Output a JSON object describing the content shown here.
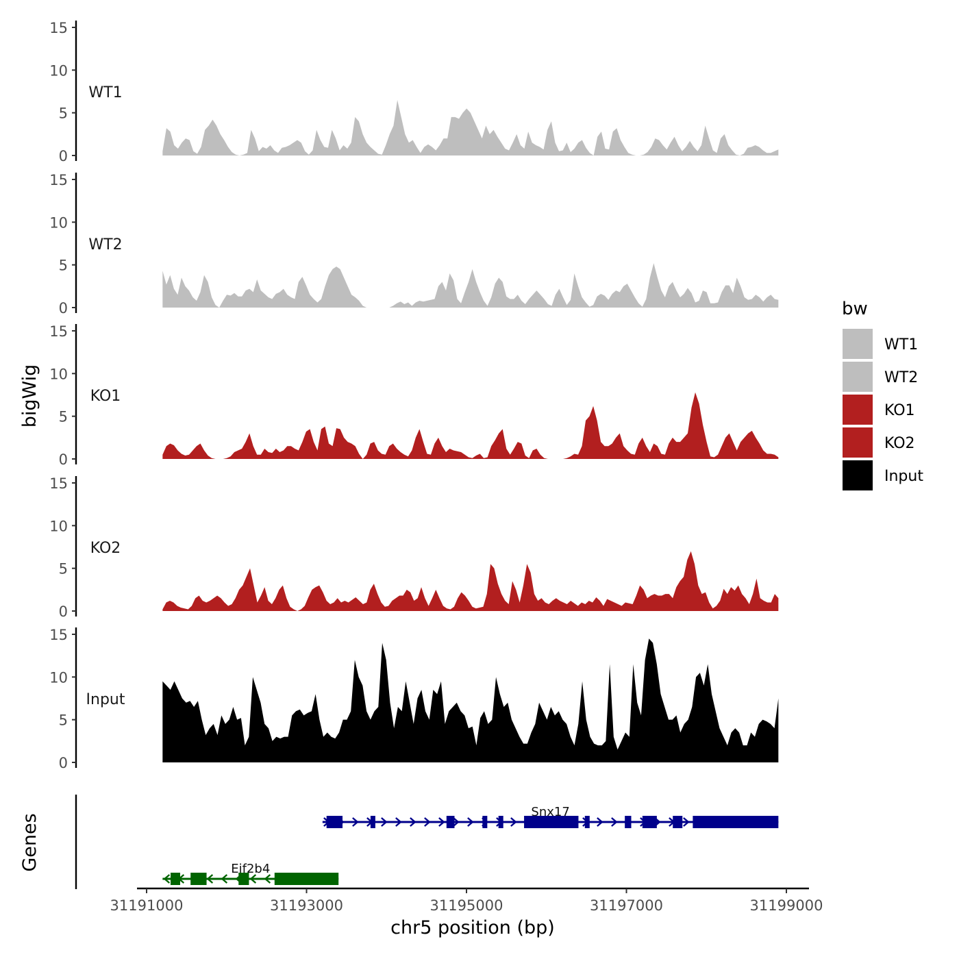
{
  "chart_data": {
    "type": "area",
    "region": {
      "chrom": "chr5",
      "start": 31191000,
      "end": 31199000
    },
    "data_range": [
      31191200,
      31198900
    ],
    "ylabel": "bigWig",
    "genes_label": "Genes",
    "xlabel": "chr5 position (bp)",
    "x_ticks": [
      31191000,
      31193000,
      31195000,
      31197000,
      31199000
    ],
    "x_tick_labels": [
      "31191000",
      "31193000",
      "31195000",
      "31197000",
      "31199000"
    ],
    "ylim": [
      0,
      15
    ],
    "y_ticks": [
      0,
      5,
      10,
      15
    ],
    "y_tick_labels": [
      "0",
      "5",
      "10",
      "15"
    ],
    "legend": {
      "title": "bw",
      "entries": [
        {
          "label": "WT1",
          "color": "#bebebe"
        },
        {
          "label": "WT2",
          "color": "#bebebe"
        },
        {
          "label": "KO1",
          "color": "#b21f1f"
        },
        {
          "label": "KO2",
          "color": "#b21f1f"
        },
        {
          "label": "Input",
          "color": "#000000"
        }
      ]
    },
    "series": [
      {
        "name": "WT1",
        "color": "#bebebe",
        "values": [
          0.5,
          3.2,
          2.8,
          1.2,
          0.8,
          1.5,
          2.0,
          1.8,
          0.5,
          0.2,
          1.0,
          3.0,
          3.5,
          4.2,
          3.5,
          2.5,
          1.8,
          1.0,
          0.4,
          0.1,
          0.0,
          0.1,
          0.3,
          3.0,
          2.0,
          0.5,
          1.0,
          0.8,
          1.2,
          0.6,
          0.3,
          0.9,
          1.0,
          1.2,
          1.5,
          1.8,
          1.5,
          0.5,
          0.1,
          0.6,
          3.0,
          1.8,
          1.0,
          0.9,
          3.0,
          2.0,
          0.6,
          1.2,
          0.8,
          1.5,
          4.5,
          4.0,
          2.5,
          1.5,
          1.0,
          0.6,
          0.2,
          0.1,
          1.2,
          2.5,
          3.5,
          6.5,
          4.5,
          2.5,
          1.5,
          1.8,
          1.0,
          0.3,
          1.0,
          1.3,
          1.0,
          0.6,
          1.2,
          2.0,
          2.0,
          4.5,
          4.5,
          4.3,
          5.0,
          5.5,
          5.0,
          4.0,
          3.0,
          2.0,
          3.5,
          2.5,
          3.0,
          2.2,
          1.5,
          0.8,
          0.6,
          1.5,
          2.5,
          1.2,
          0.8,
          2.8,
          1.5,
          1.2,
          1.0,
          0.7,
          3.0,
          4.0,
          1.5,
          0.5,
          0.6,
          1.5,
          0.4,
          0.8,
          1.5,
          1.8,
          0.9,
          0.3,
          0.0,
          2.2,
          2.8,
          0.8,
          0.7,
          2.8,
          3.2,
          1.8,
          1.0,
          0.3,
          0.1,
          0.0,
          0.0,
          0.1,
          0.4,
          1.0,
          2.0,
          1.8,
          1.2,
          0.7,
          1.5,
          2.2,
          1.2,
          0.5,
          1.0,
          1.7,
          1.0,
          0.5,
          1.2,
          3.5,
          2.0,
          0.6,
          0.3,
          2.0,
          2.5,
          1.2,
          0.6,
          0.1,
          0.0,
          0.2,
          0.9,
          1.0,
          1.2,
          1.0,
          0.6,
          0.3,
          0.3,
          0.5,
          0.7
        ]
      },
      {
        "name": "WT2",
        "color": "#bebebe",
        "values": [
          4.3,
          2.7,
          3.8,
          2.2,
          1.5,
          3.5,
          2.5,
          2.0,
          1.2,
          0.8,
          1.8,
          3.8,
          3.0,
          1.2,
          0.3,
          0.0,
          0.8,
          1.5,
          1.4,
          1.7,
          1.3,
          1.3,
          2.0,
          2.2,
          1.8,
          3.3,
          2.0,
          1.6,
          1.2,
          1.0,
          1.6,
          1.8,
          2.2,
          1.5,
          1.2,
          1.0,
          3.0,
          3.6,
          2.6,
          1.5,
          1.0,
          0.6,
          1.0,
          2.5,
          3.8,
          4.5,
          4.8,
          4.5,
          3.5,
          2.5,
          1.5,
          1.2,
          0.8,
          0.2,
          0.0,
          0.0,
          0.0,
          0.0,
          0.0,
          0.0,
          0.0,
          0.2,
          0.5,
          0.7,
          0.4,
          0.6,
          0.2,
          0.6,
          0.8,
          0.7,
          0.8,
          0.9,
          1.0,
          2.5,
          3.0,
          2.0,
          4.0,
          3.2,
          1.0,
          0.5,
          1.8,
          3.0,
          4.5,
          3.0,
          1.8,
          0.8,
          0.2,
          1.2,
          2.8,
          3.5,
          3.0,
          1.3,
          1.0,
          1.0,
          1.5,
          0.8,
          0.4,
          1.0,
          1.5,
          2.0,
          1.5,
          1.0,
          0.4,
          0.2,
          1.5,
          2.2,
          1.2,
          0.3,
          0.9,
          4.0,
          2.5,
          1.2,
          0.6,
          0.1,
          0.3,
          1.3,
          1.6,
          1.4,
          0.9,
          1.6,
          2.0,
          1.8,
          2.5,
          2.8,
          2.0,
          1.2,
          0.5,
          0.1,
          1.0,
          3.5,
          5.2,
          3.5,
          2.0,
          1.2,
          2.5,
          3.0,
          2.0,
          1.2,
          1.6,
          2.3,
          1.7,
          0.6,
          0.8,
          2.0,
          1.8,
          0.5,
          0.5,
          0.6,
          1.8,
          2.6,
          2.6,
          1.7,
          3.5,
          2.5,
          1.2,
          0.9,
          1.0,
          1.5,
          1.2,
          0.7,
          1.2,
          1.5,
          1.0,
          0.9
        ]
      },
      {
        "name": "KO1",
        "color": "#b21f1f",
        "values": [
          0.5,
          1.5,
          1.8,
          1.6,
          1.0,
          0.6,
          0.4,
          0.5,
          1.0,
          1.5,
          1.8,
          1.0,
          0.4,
          0.1,
          0.0,
          0.0,
          0.0,
          0.1,
          0.3,
          0.8,
          1.0,
          1.2,
          2.0,
          3.0,
          1.5,
          0.5,
          0.5,
          1.2,
          0.8,
          0.7,
          1.2,
          0.8,
          1.0,
          1.5,
          1.5,
          1.2,
          1.0,
          2.0,
          3.2,
          3.5,
          2.0,
          1.0,
          3.5,
          3.8,
          1.8,
          1.5,
          3.6,
          3.5,
          2.5,
          2.0,
          1.8,
          1.5,
          0.6,
          0.0,
          0.5,
          1.8,
          2.0,
          1.0,
          0.6,
          0.5,
          1.5,
          1.8,
          1.2,
          0.8,
          0.5,
          0.3,
          1.0,
          2.5,
          3.5,
          2.0,
          0.6,
          0.5,
          1.8,
          2.5,
          1.5,
          0.8,
          1.2,
          1.0,
          0.9,
          0.8,
          0.5,
          0.2,
          0.1,
          0.4,
          0.6,
          0.1,
          0.2,
          1.5,
          2.2,
          3.0,
          3.5,
          1.2,
          0.5,
          1.2,
          2.0,
          1.8,
          0.4,
          0.1,
          1.0,
          1.2,
          0.5,
          0.1,
          0.0,
          0.0,
          0.0,
          0.0,
          0.0,
          0.1,
          0.3,
          0.6,
          0.5,
          1.5,
          4.5,
          5.0,
          6.2,
          4.5,
          2.0,
          1.5,
          1.5,
          1.8,
          2.5,
          3.0,
          1.5,
          1.0,
          0.6,
          0.5,
          1.8,
          2.5,
          1.5,
          0.8,
          1.8,
          1.5,
          0.6,
          0.5,
          1.8,
          2.5,
          2.0,
          2.0,
          2.5,
          3.0,
          6.0,
          7.8,
          6.5,
          4.0,
          2.0,
          0.3,
          0.2,
          0.5,
          1.5,
          2.5,
          3.0,
          2.0,
          1.0,
          2.0,
          2.5,
          3.0,
          3.3,
          2.5,
          1.8,
          1.0,
          0.6,
          0.6,
          0.5,
          0.2
        ]
      },
      {
        "name": "KO2",
        "color": "#b21f1f",
        "values": [
          0.2,
          1.0,
          1.2,
          1.0,
          0.6,
          0.4,
          0.3,
          0.2,
          0.6,
          1.5,
          1.8,
          1.2,
          1.0,
          1.2,
          1.5,
          1.8,
          1.5,
          1.0,
          0.6,
          0.8,
          1.5,
          2.5,
          3.0,
          4.0,
          5.0,
          3.0,
          1.0,
          1.8,
          2.8,
          1.2,
          0.8,
          1.5,
          2.5,
          3.0,
          1.5,
          0.5,
          0.2,
          0.0,
          0.2,
          0.6,
          1.6,
          2.5,
          2.8,
          3.0,
          2.2,
          1.2,
          0.8,
          1.0,
          1.5,
          1.0,
          1.2,
          1.0,
          1.3,
          1.6,
          1.2,
          0.8,
          1.0,
          2.5,
          3.2,
          2.0,
          1.0,
          0.5,
          0.6,
          1.2,
          1.5,
          1.8,
          1.8,
          2.5,
          2.2,
          1.2,
          1.5,
          2.8,
          1.5,
          0.6,
          1.5,
          2.5,
          1.5,
          0.6,
          0.3,
          0.2,
          0.5,
          1.5,
          2.2,
          1.8,
          1.2,
          0.5,
          0.3,
          0.4,
          0.5,
          2.0,
          5.5,
          5.0,
          3.2,
          2.0,
          1.2,
          0.8,
          3.5,
          2.5,
          1.0,
          3.0,
          5.5,
          4.5,
          2.0,
          1.2,
          1.5,
          1.0,
          0.8,
          1.2,
          1.5,
          1.2,
          1.0,
          0.8,
          1.2,
          0.9,
          0.6,
          1.0,
          0.8,
          1.2,
          1.0,
          1.6,
          1.2,
          0.6,
          1.4,
          1.2,
          1.0,
          0.8,
          0.6,
          1.0,
          0.9,
          0.8,
          1.8,
          3.0,
          2.5,
          1.5,
          1.8,
          2.0,
          1.8,
          1.8,
          2.0,
          2.0,
          1.5,
          2.8,
          3.5,
          4.0,
          6.0,
          7.0,
          5.5,
          3.0,
          2.0,
          2.2,
          1.0,
          0.3,
          0.6,
          1.2,
          2.6,
          2.0,
          2.8,
          2.4,
          3.0,
          2.0,
          1.5,
          0.8,
          2.0,
          3.8,
          1.5,
          1.2,
          1.0,
          1.0,
          2.0,
          1.5
        ]
      },
      {
        "name": "Input",
        "color": "#000000",
        "values": [
          9.5,
          9.0,
          8.5,
          9.5,
          8.5,
          7.5,
          7.0,
          7.2,
          6.5,
          7.2,
          5.0,
          3.2,
          4.0,
          4.5,
          3.2,
          5.5,
          4.5,
          5.0,
          6.5,
          5.0,
          5.2,
          2.0,
          3.0,
          10.0,
          8.5,
          7.0,
          4.5,
          4.0,
          2.5,
          3.0,
          2.8,
          3.0,
          3.0,
          5.5,
          6.0,
          6.2,
          5.5,
          5.8,
          6.0,
          8.0,
          5.0,
          3.0,
          3.5,
          3.0,
          2.8,
          3.5,
          5.0,
          5.0,
          6.0,
          12.0,
          10.0,
          9.0,
          6.0,
          5.0,
          6.0,
          6.5,
          14.0,
          12.0,
          7.0,
          4.0,
          6.5,
          6.0,
          9.5,
          7.0,
          4.5,
          7.5,
          8.5,
          6.0,
          5.0,
          8.5,
          8.0,
          9.5,
          4.5,
          6.0,
          6.5,
          7.0,
          6.0,
          5.5,
          4.0,
          4.2,
          2.0,
          5.2,
          6.0,
          4.5,
          5.0,
          10.0,
          8.0,
          6.5,
          7.0,
          5.0,
          4.0,
          3.0,
          2.2,
          2.2,
          3.5,
          4.5,
          7.0,
          6.0,
          5.0,
          6.5,
          5.5,
          6.0,
          5.0,
          4.5,
          3.0,
          2.0,
          4.5,
          9.5,
          5.0,
          3.0,
          2.2,
          2.0,
          2.0,
          2.5,
          11.5,
          3.0,
          1.5,
          2.5,
          3.5,
          3.0,
          11.5,
          7.0,
          5.5,
          12.0,
          14.5,
          14.0,
          11.5,
          8.0,
          6.5,
          5.0,
          5.0,
          5.5,
          3.5,
          4.5,
          5.0,
          6.5,
          10.0,
          10.5,
          9.0,
          11.5,
          8.0,
          6.0,
          4.0,
          3.0,
          2.0,
          3.5,
          4.0,
          3.5,
          2.0,
          2.0,
          3.5,
          3.0,
          4.5,
          5.0,
          4.8,
          4.5,
          4.0,
          7.5
        ]
      }
    ],
    "genes": [
      {
        "name": "Snx17",
        "strand": "+",
        "color": "#00008b",
        "start": 31193200,
        "end": 31198900,
        "exons": [
          [
            31193250,
            31193450
          ],
          [
            31193800,
            31193860
          ],
          [
            31194750,
            31194850
          ],
          [
            31195200,
            31195260
          ],
          [
            31195400,
            31195460
          ],
          [
            31195720,
            31196400
          ],
          [
            31196480,
            31196540
          ],
          [
            31196980,
            31197060
          ],
          [
            31197200,
            31197380
          ],
          [
            31197580,
            31197700
          ],
          [
            31197830,
            31198900
          ]
        ]
      },
      {
        "name": "Eif2b4",
        "strand": "-",
        "color": "#006400",
        "start": 31191200,
        "end": 31193400,
        "exons": [
          [
            31191300,
            31191420
          ],
          [
            31191550,
            31191750
          ],
          [
            31192150,
            31192280
          ],
          [
            31192600,
            31193400
          ]
        ]
      }
    ]
  }
}
